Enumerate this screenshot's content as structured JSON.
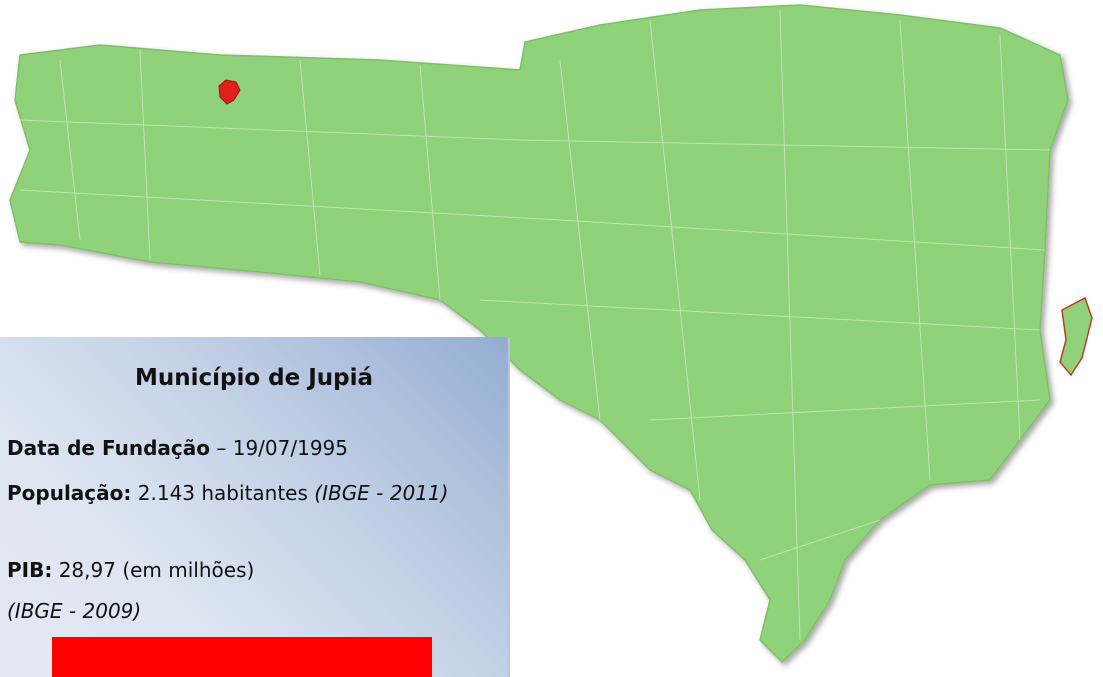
{
  "panel": {
    "title": "Município de Jupiá",
    "fields": [
      {
        "label": "Data de Fundação",
        "value": "– 19/07/1995"
      },
      {
        "label": "População:",
        "value": "2.143 habitantes",
        "note": "(IBGE - 2011)"
      },
      {
        "label": "PIB:",
        "value": "28,97 (em milhões)"
      }
    ],
    "source": "(IBGE - 2009)"
  }
}
